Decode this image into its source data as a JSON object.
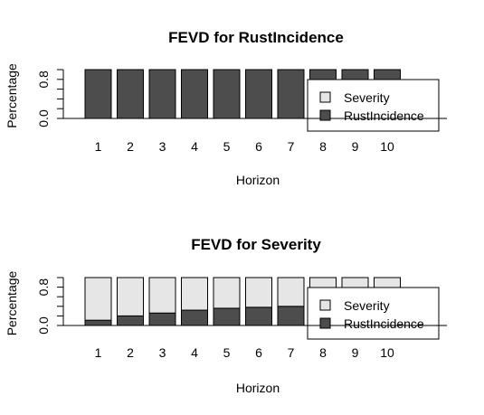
{
  "colors": {
    "severity": "#e6e6e6",
    "rust_incidence": "#4d4d4d",
    "outline": "#000000",
    "background": "#ffffff"
  },
  "chart_data": [
    {
      "type": "bar",
      "stacked": true,
      "title": "FEVD for RustIncidence",
      "xlabel": "Horizon",
      "ylabel": "Percentage",
      "y_tick_labels": [
        "0.0",
        "0.8"
      ],
      "ylim": [
        0,
        1
      ],
      "categories": [
        "1",
        "2",
        "3",
        "4",
        "5",
        "6",
        "7",
        "8",
        "9",
        "10"
      ],
      "series": [
        {
          "name": "RustIncidence",
          "values": [
            1,
            1,
            1,
            1,
            1,
            1,
            1,
            1,
            1,
            1
          ]
        },
        {
          "name": "Severity",
          "values": [
            0,
            0,
            0,
            0,
            0,
            0,
            0,
            0,
            0,
            0
          ]
        }
      ],
      "legend": {
        "position": "right",
        "entries": [
          "Severity",
          "RustIncidence"
        ]
      },
      "grid": false
    },
    {
      "type": "bar",
      "stacked": true,
      "title": "FEVD for Severity",
      "xlabel": "Horizon",
      "ylabel": "Percentage",
      "y_tick_labels": [
        "0.0",
        "0.8"
      ],
      "ylim": [
        0,
        1
      ],
      "categories": [
        "1",
        "2",
        "3",
        "4",
        "5",
        "6",
        "7",
        "8",
        "9",
        "10"
      ],
      "series": [
        {
          "name": "RustIncidence",
          "values": [
            0.11,
            0.2,
            0.26,
            0.32,
            0.36,
            0.38,
            0.4,
            0.41,
            0.42,
            0.43
          ]
        },
        {
          "name": "Severity",
          "values": [
            0.89,
            0.8,
            0.74,
            0.68,
            0.64,
            0.62,
            0.6,
            0.59,
            0.58,
            0.57
          ]
        }
      ],
      "legend": {
        "position": "right",
        "entries": [
          "Severity",
          "RustIncidence"
        ]
      },
      "grid": false
    }
  ]
}
